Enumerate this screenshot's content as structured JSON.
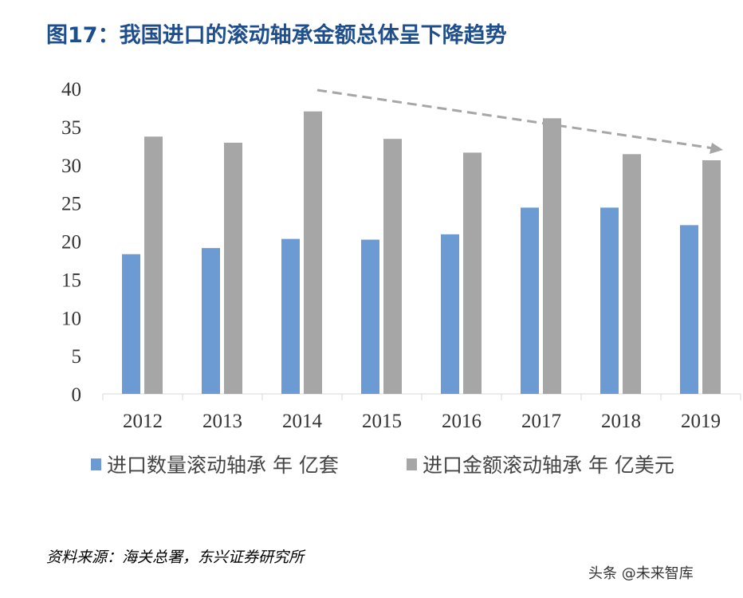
{
  "title": "图17：我国进口的滚动轴承金额总体呈下降趋势",
  "source": "资料来源：海关总署，东兴证券研究所",
  "watermark": "头条 @未来智库",
  "chart_data": {
    "type": "bar",
    "categories": [
      "2012",
      "2013",
      "2014",
      "2015",
      "2016",
      "2017",
      "2018",
      "2019"
    ],
    "series": [
      {
        "name": "进口数量滚动轴承 年 亿套",
        "color": "#6b9bd2",
        "values": [
          18.3,
          19.1,
          20.3,
          20.2,
          20.9,
          24.4,
          24.4,
          22.1
        ]
      },
      {
        "name": "进口金额滚动轴承 年 亿美元",
        "color": "#a6a6a6",
        "values": [
          33.7,
          32.9,
          37.0,
          33.4,
          31.6,
          36.1,
          31.4,
          30.6
        ]
      }
    ],
    "ylim": [
      0,
      40
    ],
    "yticks": [
      0,
      5,
      10,
      15,
      20,
      25,
      30,
      35,
      40
    ],
    "grid": false,
    "legend": "bottom",
    "annotation": "dashed downward trend arrow from 2014 to 2019"
  }
}
